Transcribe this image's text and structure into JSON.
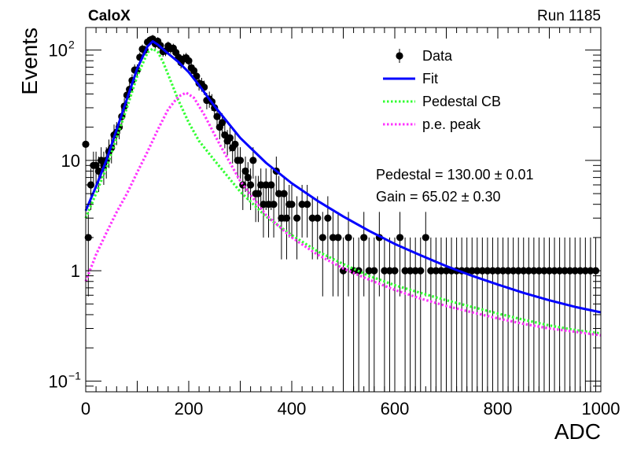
{
  "header": {
    "experiment": "CaloX",
    "run": "Run 1185"
  },
  "chart_data": {
    "type": "scatter",
    "xlabel": "ADC",
    "ylabel": "Events",
    "xlim": [
      0,
      1000
    ],
    "ylim": [
      0.08,
      160
    ],
    "yscale": "log",
    "xticks": [
      "0",
      "200",
      "400",
      "600",
      "800",
      "1000"
    ],
    "yticks": [
      {
        "value": 0.1,
        "label": "10",
        "exp": "−1"
      },
      {
        "value": 1,
        "label": "1",
        "exp": ""
      },
      {
        "value": 10,
        "label": "10",
        "exp": ""
      },
      {
        "value": 100,
        "label": "10",
        "exp": "2"
      }
    ],
    "legend_position": "top-right",
    "legend": [
      {
        "label": "Data",
        "style": "marker"
      },
      {
        "label": "Fit",
        "style": "line",
        "color": "#0000ff"
      },
      {
        "label": "Pedestal CB",
        "style": "dotted",
        "color": "#33ff33"
      },
      {
        "label": "p.e. peak",
        "style": "dotted",
        "color": "#ff33ff"
      }
    ],
    "fit_results": [
      {
        "name": "Pedestal",
        "value": "130.00",
        "error": "0.01"
      },
      {
        "name": "Gain",
        "value": "65.02",
        "error": "0.30"
      }
    ],
    "data": {
      "x": [
        0,
        5,
        10,
        15,
        20,
        25,
        30,
        35,
        40,
        45,
        50,
        55,
        60,
        65,
        70,
        75,
        80,
        85,
        90,
        95,
        100,
        105,
        110,
        115,
        120,
        125,
        130,
        135,
        140,
        145,
        150,
        155,
        160,
        165,
        170,
        175,
        180,
        185,
        190,
        195,
        200,
        205,
        210,
        215,
        220,
        225,
        230,
        235,
        240,
        245,
        250,
        255,
        260,
        265,
        270,
        275,
        280,
        285,
        290,
        295,
        300,
        305,
        310,
        315,
        320,
        325,
        330,
        335,
        340,
        345,
        350,
        355,
        360,
        365,
        370,
        375,
        380,
        385,
        390,
        395,
        400,
        410,
        420,
        430,
        440,
        450,
        460,
        470,
        480,
        490,
        500,
        510,
        520,
        530,
        540,
        550,
        560,
        570,
        580,
        590,
        600,
        610,
        620,
        630,
        640,
        650,
        660,
        670,
        680,
        690,
        700,
        710,
        720,
        730,
        740,
        750,
        760,
        770,
        780,
        790,
        800,
        810,
        820,
        830,
        840,
        850,
        860,
        870,
        880,
        890,
        900,
        910,
        920,
        930,
        940,
        950,
        960,
        970,
        980,
        990
      ],
      "y": [
        14,
        2,
        6,
        9,
        9,
        8,
        10,
        9,
        10,
        12,
        13,
        17,
        18,
        20,
        25,
        31,
        39,
        44,
        53,
        66,
        66,
        86,
        102,
        100,
        118,
        123,
        126,
        114,
        120,
        110,
        97,
        98,
        109,
        103,
        104,
        95,
        86,
        77,
        83,
        85,
        80,
        69,
        65,
        58,
        50,
        49,
        46,
        35,
        36,
        34,
        30,
        25,
        20,
        22,
        17,
        15,
        16,
        13,
        14,
        10,
        10,
        6,
        8,
        7,
        6,
        10,
        5,
        5,
        6,
        4,
        6,
        4,
        6,
        4,
        8,
        5,
        3,
        5,
        3,
        4,
        4,
        3,
        4,
        4,
        3,
        3,
        2,
        3,
        2,
        2,
        1,
        2,
        1,
        1,
        2,
        1,
        1,
        2,
        1,
        1,
        1,
        2,
        1,
        1,
        1,
        1,
        2,
        1,
        1,
        1,
        1,
        1,
        1,
        1,
        1,
        1,
        1,
        1,
        1,
        1,
        1,
        1,
        1,
        1,
        1,
        1,
        1,
        1,
        1,
        1,
        1,
        1,
        1,
        1,
        1,
        1,
        1,
        1,
        1,
        1
      ]
    },
    "fit_curve": {
      "x": [
        0,
        20,
        40,
        60,
        80,
        100,
        120,
        130,
        140,
        160,
        180,
        200,
        220,
        250,
        300,
        350,
        400,
        450,
        500,
        550,
        600,
        650,
        700,
        750,
        800,
        850,
        900,
        950,
        1000
      ],
      "y": [
        3.5,
        5.8,
        10,
        19,
        36,
        68,
        108,
        120,
        112,
        93,
        78,
        63,
        48,
        31,
        16,
        9.5,
        6.2,
        4.3,
        3.1,
        2.3,
        1.75,
        1.38,
        1.1,
        0.9,
        0.75,
        0.63,
        0.54,
        0.47,
        0.42
      ]
    },
    "pedestal_curve": {
      "x": [
        0,
        20,
        40,
        60,
        80,
        100,
        120,
        130,
        140,
        150,
        160,
        180,
        200,
        220,
        250,
        300,
        350,
        400,
        450,
        500,
        550,
        600,
        650,
        700,
        750,
        800,
        850,
        900,
        950,
        1000
      ],
      "y": [
        3,
        5,
        8.5,
        16,
        30,
        58,
        95,
        103,
        96,
        78,
        60,
        35,
        22,
        15,
        10,
        5.2,
        3.1,
        2.1,
        1.5,
        1.15,
        0.9,
        0.74,
        0.63,
        0.54,
        0.47,
        0.41,
        0.36,
        0.32,
        0.29,
        0.27
      ]
    },
    "pe_curve": {
      "x": [
        0,
        20,
        40,
        60,
        80,
        100,
        120,
        140,
        160,
        180,
        195,
        210,
        230,
        260,
        300,
        350,
        400,
        450,
        500,
        550,
        600,
        650,
        700,
        750,
        800,
        850,
        900,
        950,
        1000
      ],
      "y": [
        0.8,
        1.4,
        2.2,
        3.4,
        5,
        7.8,
        12,
        19,
        29,
        38,
        41,
        37,
        26,
        14,
        6.5,
        3.2,
        2.0,
        1.4,
        1.05,
        0.83,
        0.67,
        0.56,
        0.48,
        0.42,
        0.37,
        0.33,
        0.3,
        0.28,
        0.26
      ]
    }
  }
}
